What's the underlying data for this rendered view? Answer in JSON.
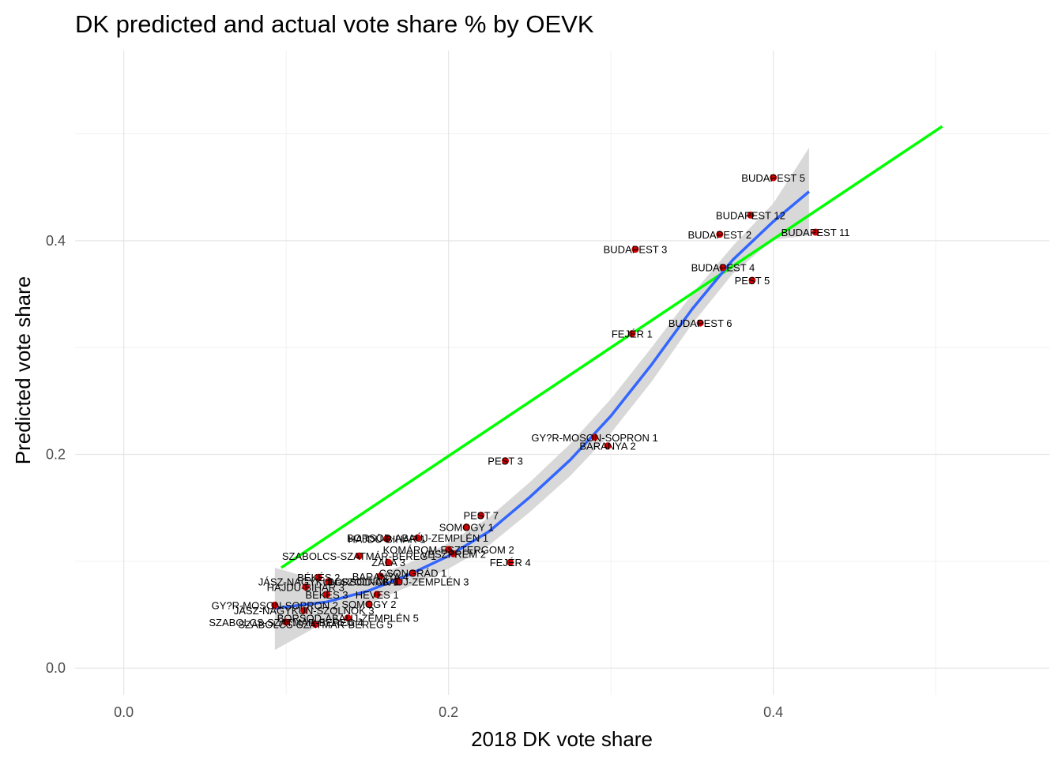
{
  "chart_data": {
    "type": "scatter",
    "title": "DK predicted and actual vote share % by OEVK",
    "xlabel": "2018 DK vote share",
    "ylabel": "Predicted vote share",
    "xlim": [
      -0.03,
      0.57
    ],
    "ylim": [
      -0.025,
      0.578
    ],
    "x_ticks": [
      0.0,
      0.2,
      0.4
    ],
    "x_tick_labels": [
      "0.0",
      "0.2",
      "0.4"
    ],
    "x_minor": [
      0.1,
      0.3,
      0.5
    ],
    "y_ticks": [
      0.0,
      0.2,
      0.4
    ],
    "y_tick_labels": [
      "0.0",
      "0.2",
      "0.4"
    ],
    "y_minor": [
      0.1,
      0.3,
      0.5
    ],
    "grid": true,
    "point_color": "#cc0000",
    "reference_line": {
      "name": "",
      "color": "#00ff00",
      "x": [
        0.097,
        0.504
      ],
      "y": [
        0.094,
        0.507
      ]
    },
    "smooth_line": {
      "name": "",
      "color": "#3366ff",
      "band_color": "#d4d4d4",
      "x": [
        0.093,
        0.125,
        0.15,
        0.175,
        0.2,
        0.225,
        0.25,
        0.275,
        0.3,
        0.325,
        0.35,
        0.375,
        0.4,
        0.422
      ],
      "y": [
        0.056,
        0.062,
        0.072,
        0.087,
        0.105,
        0.128,
        0.16,
        0.195,
        0.236,
        0.284,
        0.336,
        0.382,
        0.418,
        0.446
      ],
      "upper": [
        0.094,
        0.08,
        0.084,
        0.098,
        0.117,
        0.141,
        0.174,
        0.21,
        0.252,
        0.3,
        0.35,
        0.395,
        0.435,
        0.487
      ],
      "lower": [
        0.017,
        0.044,
        0.06,
        0.076,
        0.093,
        0.115,
        0.146,
        0.18,
        0.22,
        0.268,
        0.322,
        0.369,
        0.401,
        0.405
      ]
    },
    "points": [
      {
        "label": "BUDAPEST 5",
        "x": 0.4,
        "y": 0.459
      },
      {
        "label": "BUDAPEST 12",
        "x": 0.386,
        "y": 0.424
      },
      {
        "label": "BUDAPEST 2",
        "x": 0.367,
        "y": 0.406
      },
      {
        "label": "BUDAPEST 11",
        "x": 0.426,
        "y": 0.408
      },
      {
        "label": "BUDAPEST 3",
        "x": 0.315,
        "y": 0.392
      },
      {
        "label": "BUDAPEST 4",
        "x": 0.369,
        "y": 0.375
      },
      {
        "label": "PEST 5",
        "x": 0.387,
        "y": 0.363
      },
      {
        "label": "BUDAPEST 6",
        "x": 0.355,
        "y": 0.323
      },
      {
        "label": "FEJÉR 1",
        "x": 0.313,
        "y": 0.313
      },
      {
        "label": "GY?R-MOSON-SOPRON 1",
        "x": 0.29,
        "y": 0.216
      },
      {
        "label": "BARANYA 2",
        "x": 0.298,
        "y": 0.208
      },
      {
        "label": "PEST 3",
        "x": 0.235,
        "y": 0.194
      },
      {
        "label": "PEST 7",
        "x": 0.22,
        "y": 0.143
      },
      {
        "label": "SOMOGY 1",
        "x": 0.211,
        "y": 0.132
      },
      {
        "label": "BORSOD-ABAÚJ-ZEMPLÉN 1",
        "x": 0.181,
        "y": 0.122
      },
      {
        "label": "HAJDÚ-BIHAR 1",
        "x": 0.162,
        "y": 0.121
      },
      {
        "label": "KOMÁROM-ESZTERGOM 2",
        "x": 0.2,
        "y": 0.111
      },
      {
        "label": "SZABOLCS-SZATMÁR-BEREG 1",
        "x": 0.145,
        "y": 0.105
      },
      {
        "label": "VESZPRÉM 2",
        "x": 0.203,
        "y": 0.107
      },
      {
        "label": "FEJÉR 4",
        "x": 0.238,
        "y": 0.099
      },
      {
        "label": "ZALA 3",
        "x": 0.163,
        "y": 0.099
      },
      {
        "label": "BARANYA 4",
        "x": 0.158,
        "y": 0.086
      },
      {
        "label": "CSONGRÁD 1",
        "x": 0.178,
        "y": 0.089
      },
      {
        "label": "BORSOD-ABAÚJ-ZEMPLÉN 3",
        "x": 0.169,
        "y": 0.081
      },
      {
        "label": "BÉKÉS 2",
        "x": 0.12,
        "y": 0.085
      },
      {
        "label": "JÁSZ-NAGYKUN-SZOLNOK 1",
        "x": 0.126,
        "y": 0.081
      },
      {
        "label": "HAJDÚ-BIHAR 3",
        "x": 0.112,
        "y": 0.076
      },
      {
        "label": "BÉKÉS 3",
        "x": 0.125,
        "y": 0.069
      },
      {
        "label": "HEVES 1",
        "x": 0.156,
        "y": 0.069
      },
      {
        "label": "SOMOGY 2",
        "x": 0.151,
        "y": 0.06
      },
      {
        "label": "GY?R-MOSON-SOPRON 2",
        "x": 0.093,
        "y": 0.059
      },
      {
        "label": "JÁSZ-NAGYKUN-SZOLNOK 3",
        "x": 0.111,
        "y": 0.054
      },
      {
        "label": "BORSOD-ABAÚJ-ZEMPLÉN 5",
        "x": 0.138,
        "y": 0.047
      },
      {
        "label": "SZABOLCS-SZATMÁR-BEREG 4",
        "x": 0.1,
        "y": 0.043
      },
      {
        "label": "SZABOLCS-SZATMÁR-BEREG 5",
        "x": 0.118,
        "y": 0.041
      }
    ]
  }
}
